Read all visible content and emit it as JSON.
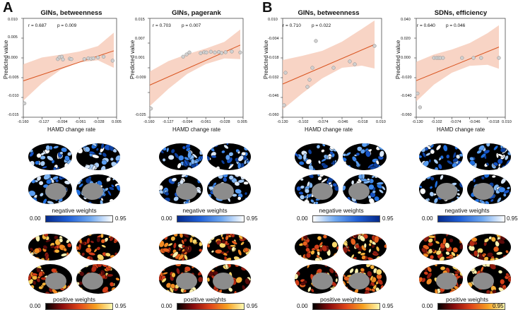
{
  "panel_labels": [
    "A",
    "B"
  ],
  "chart_data": [
    {
      "type": "scatter",
      "title": "GINs, betweenness",
      "stats_r": "r = 0.687",
      "stats_p": "p = 0.009",
      "xlabel": "HAMD change rate",
      "ylabel": "Predicted value",
      "x_ticks": [
        "-0.160",
        "-0.127",
        "-0.094",
        "-0.061",
        "-0.028",
        "0.005"
      ],
      "y_ticks": [
        "0.010",
        "0.005",
        "0.000",
        "-0.005",
        "-0.010",
        "-0.015"
      ],
      "xlim": [
        -0.16,
        0.005
      ],
      "ylim": [
        -0.015,
        0.01
      ],
      "fit_line": {
        "x": [
          -0.16,
          0.0
        ],
        "y": [
          -0.0058,
          0.0018
        ]
      },
      "ci_upper": {
        "x": [
          -0.16,
          -0.127,
          -0.094,
          -0.061,
          -0.028,
          0.0
        ],
        "y": [
          -0.0016,
          0.0001,
          0.0008,
          0.0016,
          0.003,
          0.0064
        ]
      },
      "ci_lower": {
        "x": [
          -0.16,
          -0.127,
          -0.094,
          -0.061,
          -0.028,
          0.0
        ],
        "y": [
          -0.0108,
          -0.0064,
          -0.003,
          -0.0011,
          -0.0006,
          -0.0025
        ]
      },
      "points": {
        "x": [
          -0.158,
          -0.099,
          -0.096,
          -0.092,
          -0.09,
          -0.078,
          -0.075,
          -0.052,
          -0.045,
          -0.04,
          -0.036,
          -0.028,
          -0.018,
          -0.002
        ],
        "y": [
          -0.0115,
          -0.0003,
          0.0002,
          0.0003,
          -0.0004,
          -0.0002,
          -0.0003,
          -0.0003,
          -0.0001,
          -0.0002,
          -0.0001,
          0.0001,
          0.0003,
          -0.0007
        ]
      },
      "colors": {
        "line": "#d9531e",
        "band": "#f6c9b6",
        "point_fill": "#d0d0d0",
        "point_stroke": "#8a8a8a"
      }
    },
    {
      "type": "scatter",
      "title": "GINs, pagerank",
      "stats_r": "r = 0.703",
      "stats_p": "p = 0.007",
      "xlabel": "HAMD change rate",
      "ylabel": "Predicted value",
      "x_ticks": [
        "-0.160",
        "-0.127",
        "-0.094",
        "-0.061",
        "-0.028",
        "0.005"
      ],
      "y_ticks": [
        "0.015",
        "0.007",
        "0.001",
        "-0.009",
        "-0.025"
      ],
      "xlim": [
        -0.16,
        0.005
      ],
      "ylim": [
        -0.025,
        0.015
      ],
      "fit_line": {
        "x": [
          -0.16,
          0.0
        ],
        "y": [
          -0.012,
          0.0042
        ]
      },
      "ci_upper": {
        "x": [
          -0.16,
          -0.127,
          -0.094,
          -0.061,
          -0.028,
          0.0
        ],
        "y": [
          -0.0065,
          -0.0023,
          0.0005,
          0.0028,
          0.0055,
          0.0105
        ]
      },
      "ci_lower": {
        "x": [
          -0.16,
          -0.127,
          -0.094,
          -0.061,
          -0.028,
          0.0
        ],
        "y": [
          -0.0205,
          -0.0135,
          -0.0075,
          -0.0035,
          -0.0012,
          -0.0015
        ]
      },
      "points": {
        "x": [
          -0.158,
          -0.101,
          -0.095,
          -0.09,
          -0.07,
          -0.064,
          -0.06,
          -0.052,
          -0.045,
          -0.038,
          -0.033,
          -0.026,
          -0.015,
          0.0
        ],
        "y": [
          -0.0215,
          -0.0005,
          0.0004,
          0.0012,
          0.0009,
          0.0013,
          0.0012,
          0.0015,
          0.0012,
          0.0014,
          0.001,
          0.0013,
          0.0016,
          0.0012
        ]
      },
      "colors": {
        "line": "#d9531e",
        "band": "#f6c9b6",
        "point_fill": "#d0d0d0",
        "point_stroke": "#8a8a8a"
      }
    },
    {
      "type": "scatter",
      "title": "GINs, betweenness",
      "stats_r": "r = 0.710",
      "stats_p": "p = 0.022",
      "xlabel": "HAMD change rate",
      "ylabel": "Predicted value",
      "x_ticks": [
        "-0.130",
        "-0.102",
        "-0.074",
        "-0.046",
        "-0.018",
        "0.010"
      ],
      "y_ticks": [
        "0.010",
        "-0.004",
        "-0.018",
        "-0.032",
        "-0.046",
        "-0.060"
      ],
      "xlim": [
        -0.13,
        0.01
      ],
      "ylim": [
        -0.06,
        0.01
      ],
      "fit_line": {
        "x": [
          -0.13,
          0.0
        ],
        "y": [
          -0.0365,
          -0.0085
        ]
      },
      "ci_upper": {
        "x": [
          -0.13,
          -0.102,
          -0.074,
          -0.046,
          -0.018,
          0.0
        ],
        "y": [
          -0.0195,
          -0.0165,
          -0.013,
          -0.0065,
          0.0025,
          0.0085
        ]
      },
      "ci_lower": {
        "x": [
          -0.13,
          -0.102,
          -0.074,
          -0.046,
          -0.018,
          0.0
        ],
        "y": [
          -0.0545,
          -0.043,
          -0.0325,
          -0.025,
          -0.0235,
          -0.0255
        ]
      },
      "points": {
        "x": [
          -0.128,
          -0.126,
          -0.095,
          -0.092,
          -0.088,
          -0.083,
          -0.058,
          -0.035,
          -0.028,
          0.0
        ],
        "y": [
          -0.0515,
          -0.0285,
          -0.0385,
          -0.0335,
          -0.025,
          -0.006,
          -0.025,
          -0.0205,
          -0.0225,
          -0.0095
        ]
      },
      "colors": {
        "line": "#d9531e",
        "band": "#f6c9b6",
        "point_fill": "#d0d0d0",
        "point_stroke": "#8a8a8a"
      }
    },
    {
      "type": "scatter",
      "title": "SDNs, efficiency",
      "stats_r": "r = 0.640",
      "stats_p": "p = 0.046",
      "xlabel": "HAMD change rate",
      "ylabel": "Predicted value",
      "x_ticks": [
        "-0.130",
        "-0.102",
        "-0.074",
        "-0.046",
        "-0.018",
        "0.010"
      ],
      "y_ticks": [
        "0.040",
        "0.020",
        "0.000",
        "-0.020",
        "-0.040",
        "-0.060"
      ],
      "xlim": [
        -0.13,
        0.01
      ],
      "ylim": [
        -0.06,
        0.04
      ],
      "fit_line": {
        "x": [
          -0.13,
          0.0
        ],
        "y": [
          -0.023,
          0.011
        ]
      },
      "ci_upper": {
        "x": [
          -0.13,
          -0.102,
          -0.074,
          -0.046,
          -0.018,
          0.0
        ],
        "y": [
          -0.004,
          0.0035,
          0.0085,
          0.015,
          0.025,
          0.033
        ]
      },
      "ci_lower": {
        "x": [
          -0.13,
          -0.102,
          -0.074,
          -0.046,
          -0.018,
          0.0
        ],
        "y": [
          -0.044,
          -0.027,
          -0.015,
          -0.008,
          -0.007,
          -0.011
        ]
      },
      "points": {
        "x": [
          -0.128,
          -0.124,
          -0.102,
          -0.098,
          -0.095,
          -0.092,
          -0.088,
          -0.058,
          -0.04,
          -0.028,
          0.0
        ],
        "y": [
          -0.036,
          -0.05,
          0.0,
          0.0,
          0.0,
          0.0,
          0.0,
          0.0,
          0.0,
          0.0,
          0.0
        ]
      },
      "colors": {
        "line": "#d9531e",
        "band": "#f6c9b6",
        "point_fill": "#d0d0d0",
        "point_stroke": "#8a8a8a"
      }
    }
  ],
  "colorbars": [
    {
      "label": "negative weights",
      "min": "0.00",
      "max": "0.95",
      "colors": [
        "#062a8a",
        "#1f5fd6",
        "#6fa8f0",
        "#ffffff"
      ]
    },
    {
      "label": "negative weights",
      "min": "0.00",
      "max": "0.95",
      "colors": [
        "#062a8a",
        "#1f5fd6",
        "#6fa8f0",
        "#ffffff"
      ]
    },
    {
      "label": "negative weights",
      "min": "0.00",
      "max": "0.95",
      "colors": [
        "#ffffff",
        "#6fa8f0",
        "#1f5fd6",
        "#062a8a"
      ]
    },
    {
      "label": "negative weights",
      "min": "0.00",
      "max": "0.95",
      "colors": [
        "#062a8a",
        "#1f5fd6",
        "#6fa8f0",
        "#ffffff"
      ]
    },
    {
      "label": "positive weights",
      "min": "0.00",
      "max": "0.95",
      "colors": [
        "#000000",
        "#8b0d0d",
        "#e0461a",
        "#f6a020",
        "#fff9b0"
      ]
    },
    {
      "label": "positive weights",
      "min": "0.00",
      "max": "0.95",
      "colors": [
        "#000000",
        "#8b0d0d",
        "#e0461a",
        "#f6a020",
        "#fff9b0"
      ]
    },
    {
      "label": "positive weights",
      "min": "0.00",
      "max": "0.95",
      "colors": [
        "#000000",
        "#8b0d0d",
        "#e0461a",
        "#f6a020",
        "#fff9b0"
      ]
    },
    {
      "label": "positive weights",
      "min": "0.00",
      "max": "0.95",
      "colors": [
        "#000000",
        "#8b0d0d",
        "#e0461a",
        "#f6a020",
        "#fff9b0"
      ]
    }
  ],
  "brain_palettes": {
    "negative": [
      "#0b3f9e",
      "#1552c4",
      "#1f6fe0",
      "#3b86ec",
      "#5a9ef2",
      "#7fb6f5",
      "#a8cdf8",
      "#dbe9fb",
      "#ffffff"
    ],
    "positive": [
      "#5a0a0a",
      "#8b1a10",
      "#b52a12",
      "#d6401a",
      "#e8611e",
      "#f28a22",
      "#f7b238",
      "#fbd86a",
      "#fff3b0"
    ],
    "surface": "#000000",
    "medial_wall": "#8c8c8c"
  }
}
